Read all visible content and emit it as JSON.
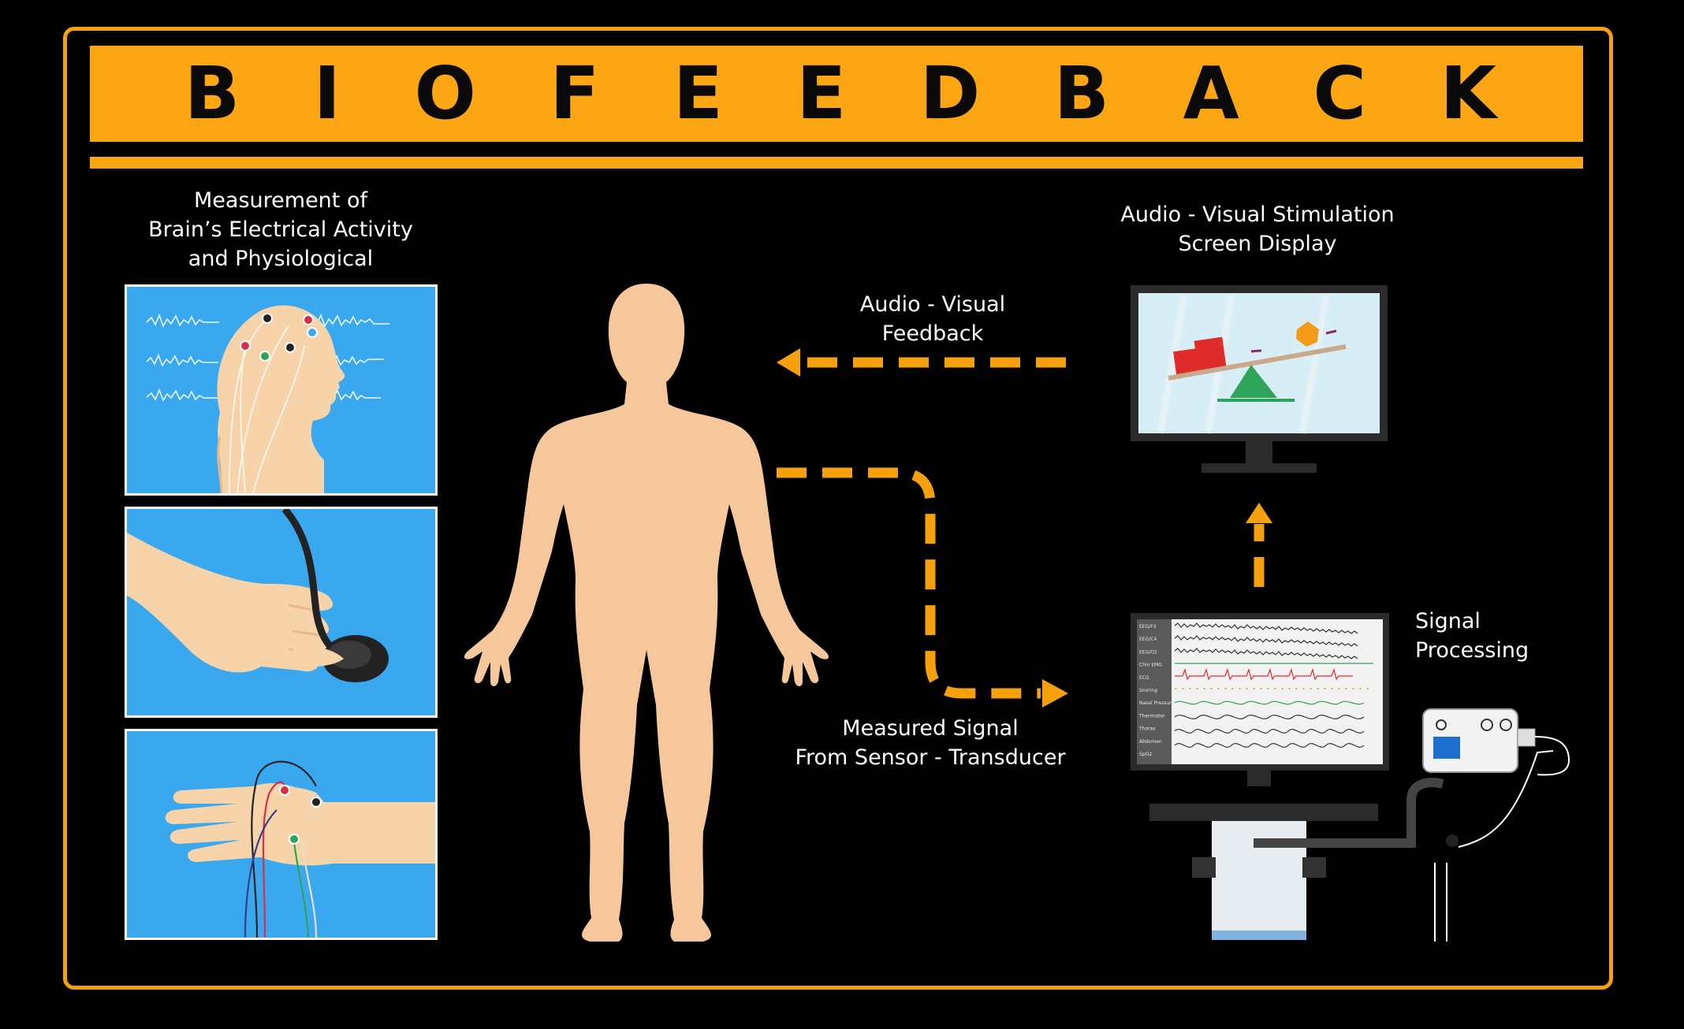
{
  "title": "BIOFEEDBACK",
  "labels": {
    "measurement": "Measurement of\nBrain’s Electrical Activity\nand Physiological",
    "stimulation": "Audio - Visual Stimulation\nScreen Display",
    "feedback": "Audio - Visual\nFeedback",
    "measured_signal": "Measured Signal\nFrom Sensor - Transducer",
    "signal_processing": "Signal\nProcessing"
  },
  "monitor_channels": [
    "EEG/F3",
    "EEG/C4",
    "EEG/O2",
    "Chin EMG",
    "ECG",
    "Snoring",
    "Nasal Pressure",
    "Thermistor",
    "Thorax",
    "Abdomen",
    "SpO2"
  ],
  "colors": {
    "accent": "#fca614",
    "arrow": "#f5a00d",
    "body": "#f6c79b",
    "panel": "#3aa8ee",
    "background": "#000000"
  },
  "icons": [
    "eeg-head-illustration",
    "finger-sensor-illustration",
    "hand-electrodes-illustration",
    "human-body-figure",
    "seesaw-monitor",
    "eeg-monitor-workstation",
    "amplifier-device"
  ]
}
